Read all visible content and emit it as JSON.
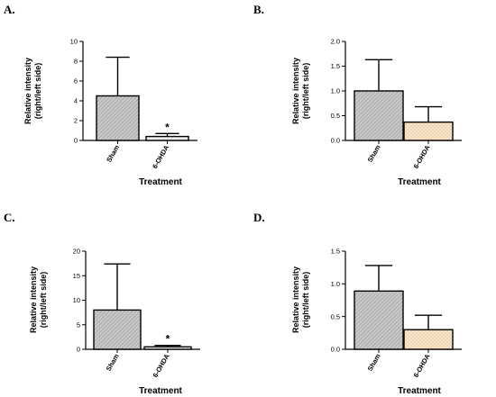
{
  "chart_data": [
    {
      "type": "bar",
      "panel": "A.",
      "categories": [
        "Sham",
        "6-OHDA"
      ],
      "values": [
        4.5,
        0.4
      ],
      "errors": [
        3.9,
        0.3
      ],
      "significance": [
        "",
        "*"
      ],
      "ylabel_lines": [
        "Relative intensity",
        "(right/left side)"
      ],
      "xlabel": "Treatment",
      "ylim": [
        0,
        10
      ],
      "yticks": [
        0,
        2,
        4,
        6,
        8,
        10
      ],
      "ytick_labels": [
        "0",
        "2",
        "4",
        "6",
        "8",
        "10"
      ]
    },
    {
      "type": "bar",
      "panel": "B.",
      "categories": [
        "Sham",
        "6-OHDA"
      ],
      "values": [
        1.0,
        0.37
      ],
      "errors": [
        0.63,
        0.31
      ],
      "significance": [
        "",
        ""
      ],
      "ylabel_lines": [
        "Relative intensity",
        "(right/left side)"
      ],
      "xlabel": "Treatment",
      "ylim": [
        0,
        2.0
      ],
      "yticks": [
        0,
        0.5,
        1.0,
        1.5,
        2.0
      ],
      "ytick_labels": [
        "0.0",
        "0.5",
        "1.0",
        "1.5",
        "2.0"
      ]
    },
    {
      "type": "bar",
      "panel": "C.",
      "categories": [
        "Sham",
        "6-OHDA"
      ],
      "values": [
        8.0,
        0.5
      ],
      "errors": [
        9.4,
        0.3
      ],
      "significance": [
        "",
        "*"
      ],
      "ylabel_lines": [
        "Relative intensity",
        "(right/left side)"
      ],
      "xlabel": "Treatment",
      "ylim": [
        0,
        20
      ],
      "yticks": [
        0,
        5,
        10,
        15,
        20
      ],
      "ytick_labels": [
        "0",
        "5",
        "10",
        "15",
        "20"
      ]
    },
    {
      "type": "bar",
      "panel": "D.",
      "categories": [
        "Sham",
        "6-OHDA"
      ],
      "values": [
        0.89,
        0.3
      ],
      "errors": [
        0.39,
        0.22
      ],
      "significance": [
        "",
        ""
      ],
      "ylabel_lines": [
        "Relative intensity",
        "(right/left side)"
      ],
      "xlabel": "Treatment",
      "ylim": [
        0,
        1.5
      ],
      "yticks": [
        0,
        0.5,
        1.0,
        1.5
      ],
      "ytick_labels": [
        "0.0",
        "0.5",
        "1.0",
        "1.5"
      ]
    }
  ],
  "colors": {
    "sham_fill": "#c8c8c8",
    "sham_hatch": "#8f8f8f",
    "ohda_fill_dark": "#f4f4f4",
    "ohda_fill_tan": "#fbe9d2",
    "ohda_hatch_tan": "#e8c99e"
  }
}
